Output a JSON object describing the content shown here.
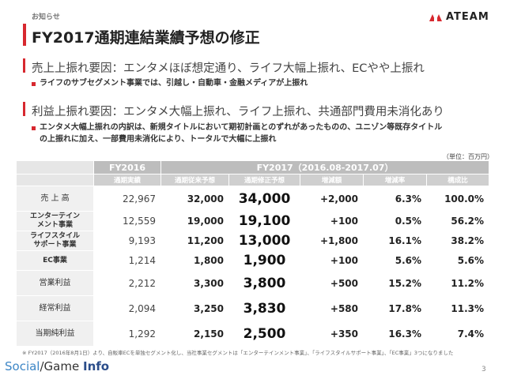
{
  "header": {
    "label": "お知らせ",
    "title": "FY2017通期連結業績予想の修正",
    "logo": "ATEAM"
  },
  "sections": [
    {
      "heading": "売上上振れ要因：エンタメほぼ想定通り、ライフ大幅上振れ、ECやや上振れ",
      "bullet": "ライフのサブセグメント事業では、引越し・自動車・金融メディアが上振れ"
    },
    {
      "heading": "利益上振れ要因：エンタメ大幅上振れ、ライフ上振れ、共通部門費用未消化あり",
      "bullet_lines": [
        "エンタメ大幅上振れの内訳は、新規タイトルにおいて期初計画とのずれがあったものの、ユニゾン等既存タイトル",
        "の上振れに加え、一部費用未消化により、トータルで大幅に上振れ"
      ]
    }
  ],
  "unit_note": "（単位：百万円）",
  "table": {
    "header_top": {
      "fy2016": "FY2016",
      "fy2017": "FY2017（2016.08-2017.07）"
    },
    "header_sub": [
      "通期実績",
      "通期従来予想",
      "通期修正予想",
      "増減額",
      "増減率",
      "構成比"
    ],
    "rows": [
      {
        "label": "売 上 高",
        "sub": false,
        "actual": "22,967",
        "prev": "32,000",
        "revised": "34,000",
        "diff": "+2,000",
        "rate": "6.3%",
        "comp": "100.0%"
      },
      {
        "label": "エンターテイン\nメント事業",
        "sub": true,
        "actual": "12,559",
        "prev": "19,000",
        "revised": "19,100",
        "diff": "+100",
        "rate": "0.5%",
        "comp": "56.2%"
      },
      {
        "label": "ライフスタイル\nサポート事業",
        "sub": true,
        "actual": "9,193",
        "prev": "11,200",
        "revised": "13,000",
        "diff": "+1,800",
        "rate": "16.1%",
        "comp": "38.2%"
      },
      {
        "label": "EC事業",
        "sub": true,
        "actual": "1,214",
        "prev": "1,800",
        "revised": "1,900",
        "diff": "+100",
        "rate": "5.6%",
        "comp": "5.6%"
      },
      {
        "label": "営業利益",
        "sub": false,
        "actual": "2,212",
        "prev": "3,300",
        "revised": "3,800",
        "diff": "+500",
        "rate": "15.2%",
        "comp": "11.2%"
      },
      {
        "label": "経常利益",
        "sub": false,
        "actual": "2,094",
        "prev": "3,250",
        "revised": "3,830",
        "diff": "+580",
        "rate": "17.8%",
        "comp": "11.3%"
      },
      {
        "label": "当期純利益",
        "sub": false,
        "actual": "1,292",
        "prev": "2,150",
        "revised": "2,500",
        "diff": "+350",
        "rate": "16.3%",
        "comp": "7.4%"
      }
    ]
  },
  "footnote": "※ FY2017（2016年8月1日）より、自販車ECを単独セグメント化し、当社事業セグメントは「エンターテインメント事業」、「ライフスタイルサポート事業」、「EC事業」3つになりました",
  "footer": {
    "brand_a": "Social",
    "brand_b": "Game",
    "brand_c": "Info",
    "page": "3"
  },
  "colors": {
    "accent": "#d7282f",
    "header_gray": "#bdbdbd"
  }
}
